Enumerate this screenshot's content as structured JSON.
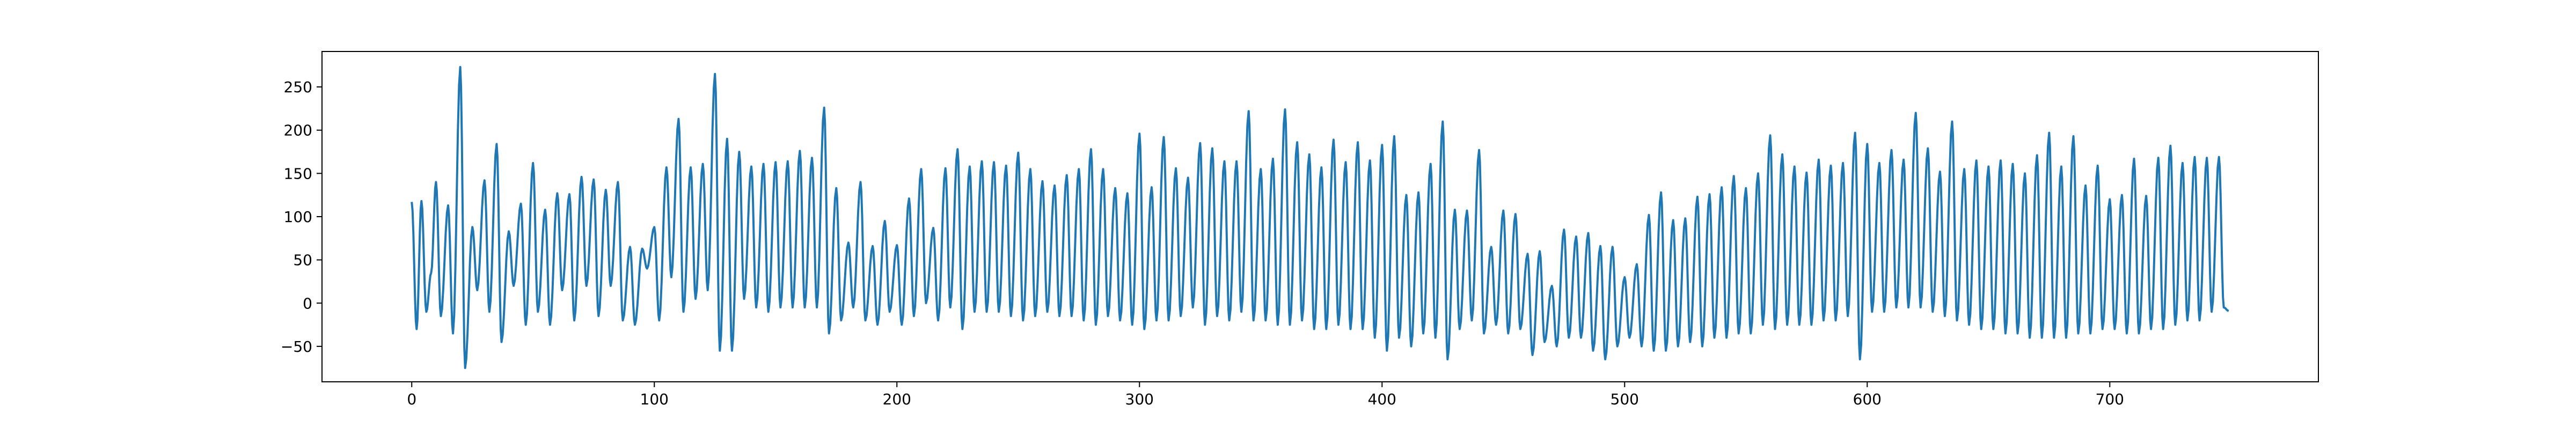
{
  "chart_data": {
    "type": "line",
    "title": "",
    "xlabel": "",
    "ylabel": "",
    "xlim": [
      -37,
      786
    ],
    "ylim": [
      -91,
      291
    ],
    "xticks": [
      0,
      100,
      200,
      300,
      400,
      500,
      600,
      700
    ],
    "yticks": [
      -50,
      0,
      50,
      100,
      150,
      200,
      250
    ],
    "grid": false,
    "legend": "none",
    "series": [
      {
        "color": "#1f77b4",
        "n_points": 750,
        "x": [
          0,
          749
        ],
        "peaks": [
          [
            0,
            117
          ],
          [
            2,
            -30
          ],
          [
            4,
            118
          ],
          [
            6,
            -10
          ],
          [
            8,
            35
          ],
          [
            10,
            140
          ],
          [
            12,
            -15
          ],
          [
            15,
            113
          ],
          [
            17,
            -35
          ],
          [
            20,
            273
          ],
          [
            22,
            -75
          ],
          [
            25,
            88
          ],
          [
            27,
            15
          ],
          [
            30,
            142
          ],
          [
            32,
            -10
          ],
          [
            35,
            184
          ],
          [
            37,
            -45
          ],
          [
            40,
            83
          ],
          [
            42,
            20
          ],
          [
            45,
            115
          ],
          [
            47,
            -25
          ],
          [
            50,
            162
          ],
          [
            52,
            -10
          ],
          [
            55,
            108
          ],
          [
            57,
            -25
          ],
          [
            60,
            127
          ],
          [
            62,
            15
          ],
          [
            65,
            126
          ],
          [
            67,
            -20
          ],
          [
            70,
            146
          ],
          [
            72,
            20
          ],
          [
            75,
            143
          ],
          [
            77,
            -15
          ],
          [
            80,
            131
          ],
          [
            82,
            20
          ],
          [
            85,
            140
          ],
          [
            87,
            -20
          ],
          [
            90,
            65
          ],
          [
            92,
            -25
          ],
          [
            95,
            63
          ],
          [
            97,
            40
          ],
          [
            100,
            88
          ],
          [
            102,
            -20
          ],
          [
            105,
            157
          ],
          [
            107,
            30
          ],
          [
            110,
            213
          ],
          [
            112,
            -10
          ],
          [
            115,
            157
          ],
          [
            117,
            5
          ],
          [
            120,
            161
          ],
          [
            122,
            15
          ],
          [
            125,
            265
          ],
          [
            127,
            -55
          ],
          [
            130,
            190
          ],
          [
            132,
            -55
          ],
          [
            135,
            175
          ],
          [
            137,
            5
          ],
          [
            140,
            158
          ],
          [
            142,
            -5
          ],
          [
            145,
            161
          ],
          [
            147,
            -10
          ],
          [
            150,
            163
          ],
          [
            152,
            -5
          ],
          [
            155,
            164
          ],
          [
            157,
            -5
          ],
          [
            160,
            176
          ],
          [
            162,
            -5
          ],
          [
            165,
            168
          ],
          [
            167,
            -5
          ],
          [
            170,
            226
          ],
          [
            172,
            -35
          ],
          [
            175,
            133
          ],
          [
            177,
            -20
          ],
          [
            180,
            70
          ],
          [
            182,
            -5
          ],
          [
            185,
            140
          ],
          [
            187,
            -20
          ],
          [
            190,
            66
          ],
          [
            192,
            -25
          ],
          [
            195,
            95
          ],
          [
            197,
            -10
          ],
          [
            200,
            67
          ],
          [
            202,
            -25
          ],
          [
            205,
            121
          ],
          [
            207,
            -15
          ],
          [
            210,
            155
          ],
          [
            212,
            0
          ],
          [
            215,
            87
          ],
          [
            217,
            -20
          ],
          [
            220,
            156
          ],
          [
            222,
            -5
          ],
          [
            225,
            178
          ],
          [
            227,
            -30
          ],
          [
            230,
            158
          ],
          [
            232,
            -10
          ],
          [
            235,
            164
          ],
          [
            237,
            -10
          ],
          [
            240,
            163
          ],
          [
            242,
            -10
          ],
          [
            245,
            159
          ],
          [
            247,
            -15
          ],
          [
            250,
            174
          ],
          [
            252,
            -20
          ],
          [
            255,
            155
          ],
          [
            257,
            -15
          ],
          [
            260,
            141
          ],
          [
            262,
            -10
          ],
          [
            265,
            136
          ],
          [
            267,
            -15
          ],
          [
            270,
            148
          ],
          [
            272,
            -15
          ],
          [
            275,
            155
          ],
          [
            277,
            -20
          ],
          [
            280,
            178
          ],
          [
            282,
            -25
          ],
          [
            285,
            155
          ],
          [
            287,
            -15
          ],
          [
            290,
            133
          ],
          [
            292,
            -20
          ],
          [
            295,
            127
          ],
          [
            297,
            -25
          ],
          [
            300,
            196
          ],
          [
            302,
            -30
          ],
          [
            305,
            134
          ],
          [
            307,
            -20
          ],
          [
            310,
            192
          ],
          [
            312,
            -20
          ],
          [
            315,
            156
          ],
          [
            317,
            -15
          ],
          [
            320,
            145
          ],
          [
            322,
            -5
          ],
          [
            325,
            185
          ],
          [
            327,
            -25
          ],
          [
            330,
            179
          ],
          [
            332,
            -15
          ],
          [
            335,
            164
          ],
          [
            337,
            -20
          ],
          [
            340,
            164
          ],
          [
            342,
            -10
          ],
          [
            345,
            222
          ],
          [
            347,
            -20
          ],
          [
            350,
            155
          ],
          [
            352,
            -20
          ],
          [
            355,
            167
          ],
          [
            357,
            -25
          ],
          [
            360,
            224
          ],
          [
            362,
            -25
          ],
          [
            365,
            186
          ],
          [
            367,
            -20
          ],
          [
            370,
            172
          ],
          [
            372,
            -30
          ],
          [
            375,
            157
          ],
          [
            377,
            -30
          ],
          [
            380,
            189
          ],
          [
            382,
            -25
          ],
          [
            385,
            163
          ],
          [
            387,
            -30
          ],
          [
            390,
            186
          ],
          [
            392,
            -30
          ],
          [
            395,
            165
          ],
          [
            397,
            -40
          ],
          [
            400,
            183
          ],
          [
            402,
            -55
          ],
          [
            405,
            193
          ],
          [
            407,
            -40
          ],
          [
            410,
            125
          ],
          [
            412,
            -50
          ],
          [
            415,
            128
          ],
          [
            417,
            -35
          ],
          [
            420,
            161
          ],
          [
            422,
            -40
          ],
          [
            425,
            210
          ],
          [
            427,
            -65
          ],
          [
            430,
            108
          ],
          [
            432,
            -30
          ],
          [
            435,
            107
          ],
          [
            437,
            -20
          ],
          [
            440,
            177
          ],
          [
            442,
            -35
          ],
          [
            445,
            65
          ],
          [
            447,
            -25
          ],
          [
            450,
            107
          ],
          [
            452,
            -35
          ],
          [
            455,
            103
          ],
          [
            457,
            -30
          ],
          [
            460,
            57
          ],
          [
            462,
            -60
          ],
          [
            465,
            60
          ],
          [
            467,
            -45
          ],
          [
            470,
            20
          ],
          [
            472,
            -50
          ],
          [
            475,
            85
          ],
          [
            477,
            -40
          ],
          [
            480,
            77
          ],
          [
            482,
            -40
          ],
          [
            485,
            81
          ],
          [
            487,
            -55
          ],
          [
            490,
            66
          ],
          [
            492,
            -65
          ],
          [
            495,
            65
          ],
          [
            497,
            -50
          ],
          [
            500,
            30
          ],
          [
            502,
            -40
          ],
          [
            505,
            45
          ],
          [
            507,
            -50
          ],
          [
            510,
            102
          ],
          [
            512,
            -55
          ],
          [
            515,
            128
          ],
          [
            517,
            -55
          ],
          [
            520,
            96
          ],
          [
            522,
            -50
          ],
          [
            525,
            98
          ],
          [
            527,
            -45
          ],
          [
            530,
            123
          ],
          [
            532,
            -50
          ],
          [
            535,
            126
          ],
          [
            537,
            -40
          ],
          [
            540,
            134
          ],
          [
            542,
            -40
          ],
          [
            545,
            147
          ],
          [
            547,
            -35
          ],
          [
            550,
            133
          ],
          [
            552,
            -35
          ],
          [
            555,
            150
          ],
          [
            557,
            -25
          ],
          [
            560,
            194
          ],
          [
            562,
            -30
          ],
          [
            565,
            172
          ],
          [
            567,
            -25
          ],
          [
            570,
            158
          ],
          [
            572,
            -25
          ],
          [
            575,
            151
          ],
          [
            577,
            -25
          ],
          [
            580,
            166
          ],
          [
            582,
            -20
          ],
          [
            585,
            159
          ],
          [
            587,
            -20
          ],
          [
            590,
            162
          ],
          [
            592,
            -15
          ],
          [
            595,
            197
          ],
          [
            597,
            -65
          ],
          [
            600,
            184
          ],
          [
            602,
            -10
          ],
          [
            605,
            162
          ],
          [
            607,
            -10
          ],
          [
            610,
            177
          ],
          [
            612,
            -5
          ],
          [
            615,
            166
          ],
          [
            617,
            -5
          ],
          [
            620,
            220
          ],
          [
            622,
            -5
          ],
          [
            625,
            179
          ],
          [
            627,
            -10
          ],
          [
            630,
            152
          ],
          [
            632,
            -15
          ],
          [
            635,
            210
          ],
          [
            637,
            -20
          ],
          [
            640,
            155
          ],
          [
            642,
            -25
          ],
          [
            645,
            165
          ],
          [
            647,
            -30
          ],
          [
            650,
            158
          ],
          [
            652,
            -30
          ],
          [
            655,
            165
          ],
          [
            657,
            -35
          ],
          [
            660,
            161
          ],
          [
            662,
            -35
          ],
          [
            665,
            150
          ],
          [
            667,
            -40
          ],
          [
            670,
            171
          ],
          [
            672,
            -40
          ],
          [
            675,
            197
          ],
          [
            677,
            -40
          ],
          [
            680,
            158
          ],
          [
            682,
            -40
          ],
          [
            685,
            193
          ],
          [
            687,
            -35
          ],
          [
            690,
            136
          ],
          [
            692,
            -35
          ],
          [
            695,
            159
          ],
          [
            697,
            -30
          ],
          [
            700,
            120
          ],
          [
            702,
            -30
          ],
          [
            705,
            125
          ],
          [
            707,
            -35
          ],
          [
            710,
            167
          ],
          [
            712,
            -35
          ],
          [
            715,
            124
          ],
          [
            717,
            -30
          ],
          [
            720,
            168
          ],
          [
            722,
            -30
          ],
          [
            725,
            182
          ],
          [
            727,
            -25
          ],
          [
            730,
            162
          ],
          [
            732,
            -20
          ],
          [
            735,
            169
          ],
          [
            737,
            -20
          ],
          [
            740,
            168
          ],
          [
            742,
            -10
          ],
          [
            745,
            169
          ],
          [
            747,
            -5
          ],
          [
            749,
            -9
          ]
        ]
      }
    ]
  }
}
